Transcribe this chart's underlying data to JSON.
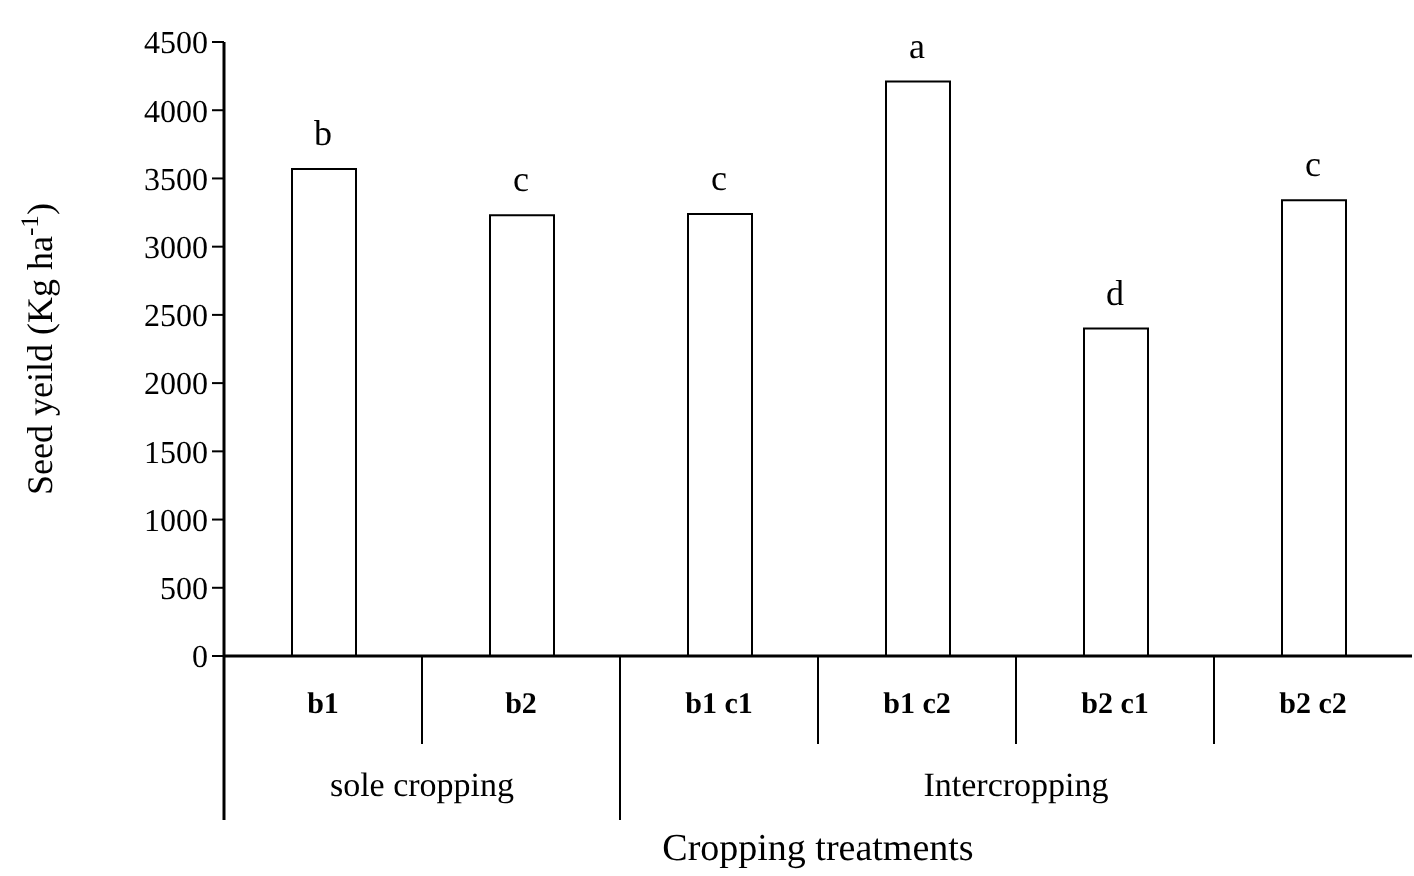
{
  "chart_data": {
    "type": "bar",
    "xlabel": "Cropping treatments",
    "ylabel": "Seed yeild (Kg ha$^{-1}$)",
    "categories": [
      "b1",
      "b2",
      "b1 c1",
      "b1 c2",
      "b2 c1",
      "b2 c2"
    ],
    "values": [
      3570,
      3230,
      3240,
      4210,
      2400,
      3340
    ],
    "color": "#ffffff",
    "ylim": [
      0,
      4500
    ],
    "yticks": [
      0,
      500,
      1000,
      1500,
      2000,
      2500,
      3000,
      3500,
      4000,
      4500
    ],
    "grid": false,
    "legend": false,
    "annotations": [
      {
        "text": "b",
        "x": "b1",
        "y": 3570
      },
      {
        "text": "c",
        "x": "b2",
        "y": 3230
      },
      {
        "text": "c",
        "x": "b1 c1",
        "y": 3240
      },
      {
        "text": "a",
        "x": "b1 c2",
        "y": 4210
      },
      {
        "text": "d",
        "x": "b2 c1",
        "y": 2400
      },
      {
        "text": "c",
        "x": "b2 c2",
        "y": 3340
      },
      "sole cropping",
      "Intercropping"
    ]
  }
}
